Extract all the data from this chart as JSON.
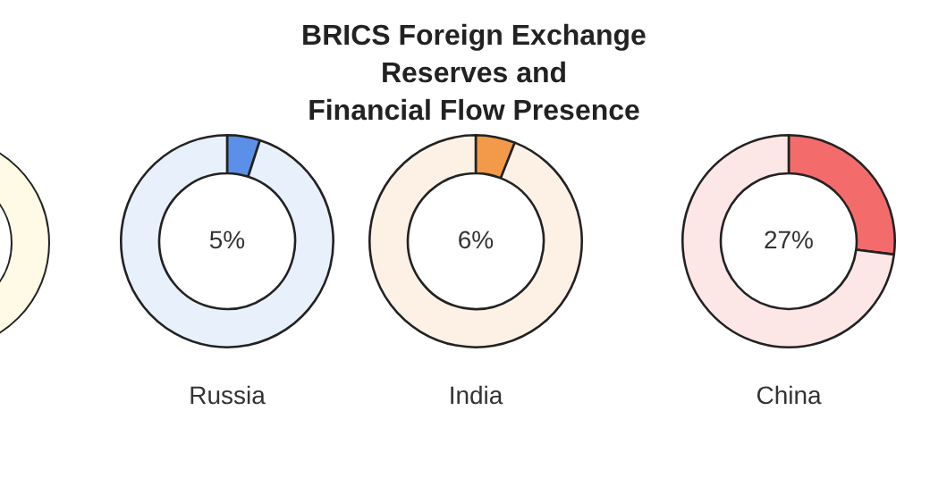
{
  "chart_data": [
    {
      "type": "other",
      "title": "BRICS Foreign Exchange Reserves and\nFinancial Flow Presence"
    },
    {
      "type": "donut",
      "title": "Russia",
      "categories": [
        null,
        null
      ],
      "values": [
        5,
        95
      ],
      "colors": [
        "#5b8fe8",
        "#e8f0fc"
      ],
      "value_labels": [
        "5%",
        null
      ]
    },
    {
      "type": "donut",
      "title": "India",
      "categories": [
        null,
        null
      ],
      "values": [
        6,
        94
      ],
      "colors": [
        "#f29a4a",
        "#fdf1e6"
      ],
      "value_labels": [
        "6%",
        null
      ]
    },
    {
      "type": "donut",
      "title": "China",
      "categories": [
        null,
        null
      ],
      "values": [
        27,
        73
      ],
      "colors": [
        "#f46b6b",
        "#fde6e6"
      ],
      "value_labels": [
        "27%",
        null
      ]
    }
  ]
}
